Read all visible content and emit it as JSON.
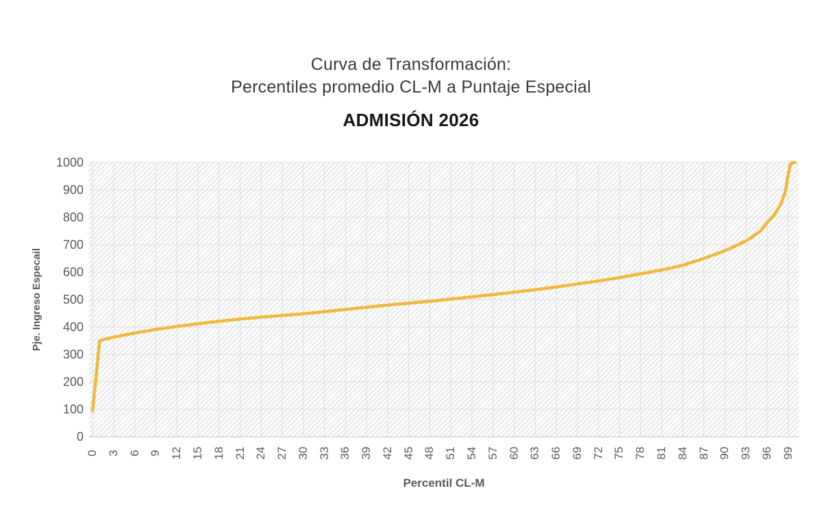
{
  "title": {
    "line1": "Curva de Transformación:",
    "line2": "Percentiles promedio CL-M a Puntaje Especial",
    "line3": "ADMISIÓN 2026"
  },
  "chart_data": {
    "type": "line",
    "title": "Curva de Transformación: Percentiles promedio CL-M a Puntaje Especial — ADMISIÓN 2026",
    "xlabel": "Percentil CL-M",
    "ylabel": "Pje. Ingreso Especail",
    "xlim": [
      0,
      101
    ],
    "ylim": [
      0,
      1000
    ],
    "x_ticks": [
      0,
      3,
      6,
      9,
      12,
      15,
      18,
      21,
      24,
      27,
      30,
      33,
      36,
      39,
      42,
      45,
      48,
      51,
      54,
      57,
      60,
      63,
      66,
      69,
      72,
      75,
      78,
      81,
      84,
      87,
      90,
      93,
      96,
      99
    ],
    "y_ticks": [
      0,
      100,
      200,
      300,
      400,
      500,
      600,
      700,
      800,
      900,
      1000
    ],
    "grid": true,
    "legend_position": "none",
    "series": [
      {
        "points": [
          [
            0,
            95
          ],
          [
            0.5,
            220
          ],
          [
            1,
            350
          ],
          [
            2,
            357
          ],
          [
            3,
            363
          ],
          [
            6,
            378
          ],
          [
            9,
            391
          ],
          [
            12,
            402
          ],
          [
            15,
            412
          ],
          [
            18,
            421
          ],
          [
            21,
            429
          ],
          [
            24,
            436
          ],
          [
            27,
            442
          ],
          [
            30,
            448
          ],
          [
            33,
            456
          ],
          [
            36,
            464
          ],
          [
            39,
            472
          ],
          [
            42,
            480
          ],
          [
            45,
            487
          ],
          [
            48,
            494
          ],
          [
            51,
            502
          ],
          [
            54,
            510
          ],
          [
            57,
            518
          ],
          [
            60,
            527
          ],
          [
            63,
            536
          ],
          [
            66,
            546
          ],
          [
            69,
            557
          ],
          [
            72,
            568
          ],
          [
            75,
            580
          ],
          [
            78,
            594
          ],
          [
            81,
            608
          ],
          [
            84,
            625
          ],
          [
            87,
            650
          ],
          [
            90,
            678
          ],
          [
            93,
            714
          ],
          [
            95,
            748
          ],
          [
            96,
            780
          ],
          [
            97,
            808
          ],
          [
            98,
            850
          ],
          [
            98.6,
            895
          ],
          [
            99,
            955
          ],
          [
            99.3,
            990
          ],
          [
            99.6,
            1000
          ],
          [
            100,
            1000
          ]
        ],
        "color": "#F2B83D"
      }
    ],
    "style": {
      "grid_color": "#dcdcdc",
      "tick_label_color": "#595959",
      "axis_title_color": "#595959",
      "title_color": "#3a3a3a",
      "subtitle_color": "#161616",
      "plot_hatch": "light-upward-diagonal",
      "line_width": 4.5
    }
  }
}
